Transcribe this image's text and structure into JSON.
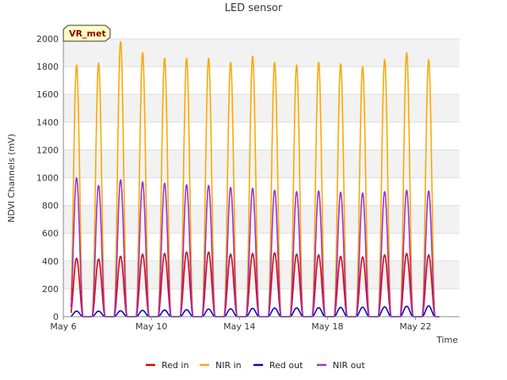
{
  "chart_data": {
    "type": "line",
    "title": "LED sensor",
    "xlabel": "Time",
    "ylabel": "NDVI Channels (mV)",
    "badge": "VR_met",
    "ylim": [
      0,
      2000
    ],
    "yticks": [
      0,
      200,
      400,
      600,
      800,
      1000,
      1200,
      1400,
      1600,
      1800,
      2000
    ],
    "xlim_days": [
      6,
      24
    ],
    "xticks": [
      {
        "day": 6,
        "label": "May 6"
      },
      {
        "day": 10,
        "label": "May 10"
      },
      {
        "day": 14,
        "label": "May 14"
      },
      {
        "day": 18,
        "label": "May 18"
      },
      {
        "day": 22,
        "label": "May 22"
      }
    ],
    "grid": true,
    "legend_position": "bottom",
    "peak_days": [
      6.6,
      7.6,
      8.6,
      9.6,
      10.6,
      11.6,
      12.6,
      13.6,
      14.6,
      15.6,
      16.6,
      17.6,
      18.6,
      19.6,
      20.6,
      21.6,
      22.6
    ],
    "series": [
      {
        "name": "Red in",
        "color": "#dd0000",
        "peaks": [
          420,
          415,
          435,
          450,
          455,
          465,
          465,
          450,
          455,
          460,
          450,
          445,
          435,
          430,
          445,
          455,
          445
        ]
      },
      {
        "name": "NIR in",
        "color": "#ffa500",
        "peaks": [
          1810,
          1825,
          1980,
          1900,
          1860,
          1860,
          1860,
          1830,
          1875,
          1830,
          1810,
          1830,
          1820,
          1800,
          1850,
          1900,
          1850
        ]
      },
      {
        "name": "Red out",
        "color": "#0000cc",
        "peaks": [
          40,
          40,
          42,
          45,
          48,
          50,
          55,
          57,
          60,
          62,
          63,
          65,
          67,
          68,
          70,
          75,
          78
        ]
      },
      {
        "name": "NIR out",
        "color": "#9a32cd",
        "peaks": [
          1000,
          945,
          985,
          970,
          960,
          950,
          945,
          930,
          925,
          910,
          900,
          905,
          895,
          890,
          900,
          910,
          905
        ]
      }
    ]
  }
}
